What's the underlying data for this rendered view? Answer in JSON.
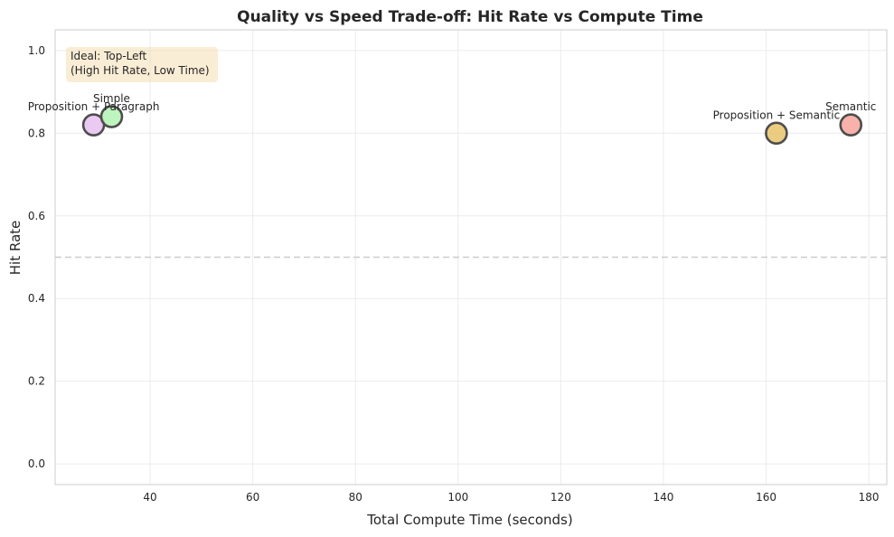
{
  "chart_data": {
    "type": "scatter",
    "title": "Quality vs Speed Trade-off: Hit Rate vs Compute Time",
    "xlabel": "Total Compute Time (seconds)",
    "ylabel": "Hit Rate",
    "xlim": [
      21.5,
      183.5
    ],
    "ylim": [
      -0.05,
      1.05
    ],
    "xticks": [
      40,
      60,
      80,
      100,
      120,
      140,
      160,
      180
    ],
    "yticks": [
      0.0,
      0.2,
      0.4,
      0.6,
      0.8,
      1.0
    ],
    "xtick_labels": [
      "40",
      "60",
      "80",
      "100",
      "120",
      "140",
      "160",
      "180"
    ],
    "ytick_labels": [
      "0.0",
      "0.2",
      "0.4",
      "0.6",
      "0.8",
      "1.0"
    ],
    "grid": true,
    "reference_line": {
      "y": 0.5,
      "style": "dashed",
      "color": "#cccccc"
    },
    "annotation": {
      "lines": [
        "Ideal: Top-Left",
        "(High Hit Rate, Low Time)"
      ],
      "position": "top-left",
      "background": "#f5deb3"
    },
    "points": [
      {
        "label": "Proposition + Paragraph",
        "x": 29.0,
        "y": 0.82,
        "color": "#e6bff0"
      },
      {
        "label": "Simple",
        "x": 32.5,
        "y": 0.84,
        "color": "#b3f2b3"
      },
      {
        "label": "Proposition + Semantic",
        "x": 162.0,
        "y": 0.8,
        "color": "#e8c36b"
      },
      {
        "label": "Semantic",
        "x": 176.5,
        "y": 0.82,
        "color": "#f7a59c"
      }
    ],
    "colors": {
      "axes_border": "#cccccc",
      "grid": "#ebebeb",
      "marker_edge": "#4d4d4d",
      "text": "#262626"
    }
  }
}
